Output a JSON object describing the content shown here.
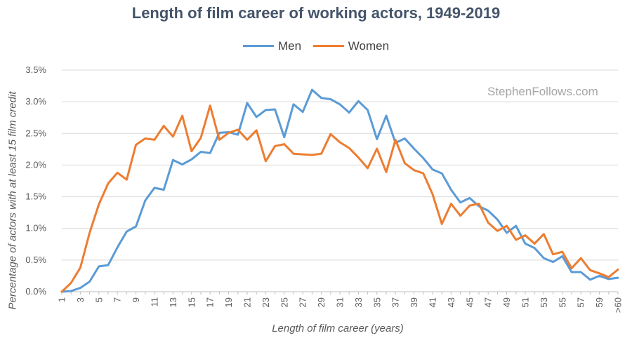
{
  "chart_data": {
    "type": "line",
    "title": "Length of film career of working actors, 1949-2019",
    "xlabel": "Length of film career (years)",
    "ylabel": "Percentage of actors with at least 15 film credit",
    "watermark": "StephenFollows.com",
    "legend_position": "top-center",
    "grid": true,
    "ylim": [
      0,
      3.5
    ],
    "yticks": [
      "0.0%",
      "0.5%",
      "1.0%",
      "1.5%",
      "2.0%",
      "2.5%",
      "3.0%",
      "3.5%"
    ],
    "categories": [
      "1",
      "2",
      "3",
      "4",
      "5",
      "6",
      "7",
      "8",
      "9",
      "10",
      "11",
      "12",
      "13",
      "14",
      "15",
      "16",
      "17",
      "18",
      "19",
      "20",
      "21",
      "22",
      "23",
      "24",
      "25",
      "26",
      "27",
      "28",
      "29",
      "30",
      "31",
      "32",
      "33",
      "34",
      "35",
      "36",
      "37",
      "38",
      "39",
      "40",
      "41",
      "42",
      "43",
      "44",
      "45",
      "46",
      "47",
      "48",
      "49",
      "50",
      "51",
      "52",
      "53",
      "54",
      "55",
      "56",
      "57",
      "58",
      "59",
      "60",
      ">60"
    ],
    "xtick_labels": [
      "1",
      "3",
      "5",
      "7",
      "9",
      "11",
      "13",
      "15",
      "17",
      "19",
      "21",
      "23",
      "25",
      "27",
      "29",
      "31",
      "33",
      "35",
      "37",
      "39",
      "41",
      "43",
      "45",
      "47",
      "49",
      "51",
      "53",
      "55",
      "57",
      "59",
      ">60"
    ],
    "series": [
      {
        "name": "Men",
        "color": "#5b9bd5",
        "values": [
          0.0,
          0.01,
          0.06,
          0.16,
          0.4,
          0.42,
          0.7,
          0.95,
          1.03,
          1.44,
          1.64,
          1.61,
          2.08,
          2.01,
          2.09,
          2.21,
          2.19,
          2.51,
          2.52,
          2.48,
          2.98,
          2.76,
          2.87,
          2.88,
          2.44,
          2.96,
          2.84,
          3.19,
          3.06,
          3.04,
          2.96,
          2.83,
          3.01,
          2.87,
          2.41,
          2.78,
          2.35,
          2.42,
          2.26,
          2.11,
          1.93,
          1.87,
          1.61,
          1.41,
          1.48,
          1.35,
          1.28,
          1.14,
          0.93,
          1.04,
          0.76,
          0.69,
          0.53,
          0.47,
          0.56,
          0.31,
          0.31,
          0.19,
          0.25,
          0.2,
          0.22
        ]
      },
      {
        "name": "Women",
        "color": "#ed7d31",
        "values": [
          0.0,
          0.14,
          0.38,
          0.93,
          1.38,
          1.71,
          1.88,
          1.77,
          2.32,
          2.42,
          2.4,
          2.62,
          2.45,
          2.78,
          2.22,
          2.43,
          2.94,
          2.4,
          2.51,
          2.56,
          2.4,
          2.55,
          2.06,
          2.3,
          2.33,
          2.18,
          2.17,
          2.16,
          2.18,
          2.49,
          2.36,
          2.27,
          2.12,
          1.95,
          2.26,
          1.89,
          2.4,
          2.03,
          1.92,
          1.87,
          1.54,
          1.07,
          1.39,
          1.2,
          1.36,
          1.39,
          1.09,
          0.96,
          1.04,
          0.82,
          0.89,
          0.76,
          0.91,
          0.59,
          0.63,
          0.37,
          0.53,
          0.34,
          0.29,
          0.23,
          0.35
        ]
      }
    ]
  }
}
